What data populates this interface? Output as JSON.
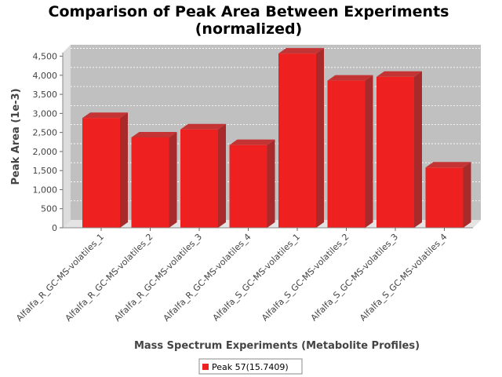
{
  "chart_data": {
    "type": "bar",
    "title": "Comparison of Peak Area Between Experiments",
    "subtitle": "(normalized)",
    "xlabel": "Mass Spectrum Experiments (Metabolite Profiles)",
    "ylabel": "Peak Area (1e-3)",
    "ylim": [
      0,
      4800
    ],
    "yticks": [
      0,
      500,
      1000,
      1500,
      2000,
      2500,
      3000,
      3500,
      4000,
      4500
    ],
    "ytick_labels": [
      "0",
      "500",
      "1,000",
      "1,500",
      "2,000",
      "2,500",
      "3,000",
      "3,500",
      "4,000",
      "4,500"
    ],
    "grid": true,
    "legend_position": "bottom-center",
    "categories": [
      "Alfalfa_R_GC-MS-volatiles_1",
      "Alfalfa_R_GC-MS-volatiles_2",
      "Alfalfa_R_GC-MS-volatiles_3",
      "Alfalfa_R_GC-MS-volatiles_4",
      "Alfalfa_S_GC-MS-volatiles_1",
      "Alfalfa_S_GC-MS-volatiles_2",
      "Alfalfa_S_GC-MS-volatiles_3",
      "Alfalfa_S_GC-MS-volatiles_4"
    ],
    "series": [
      {
        "name": "Peak 57(15.7409)",
        "color": "#ee2020",
        "values": [
          2880,
          2370,
          2580,
          2170,
          4570,
          3860,
          3960,
          1580
        ]
      }
    ]
  }
}
